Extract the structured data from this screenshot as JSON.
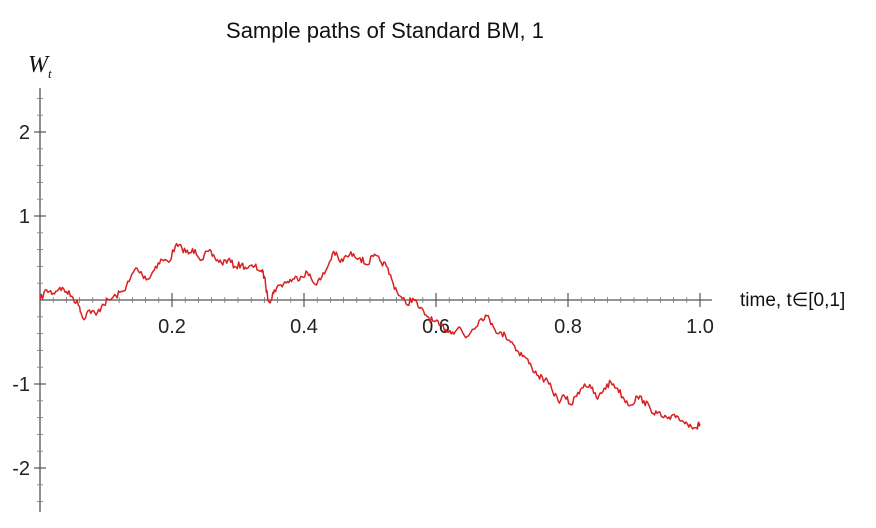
{
  "chart_data": {
    "type": "line",
    "title": "Sample paths of Standard BM, 1",
    "xlabel": "time, t∈[0,1]",
    "ylabel": {
      "main": "W",
      "sub": "t"
    },
    "xlim": [
      0,
      1.0
    ],
    "ylim": [
      -2.5,
      2.5
    ],
    "xticks": [
      {
        "value": 0.2,
        "label": "0.2"
      },
      {
        "value": 0.4,
        "label": "0.4"
      },
      {
        "value": 0.6,
        "label": "0.6"
      },
      {
        "value": 0.8,
        "label": "0.8"
      },
      {
        "value": 1.0,
        "label": "1.0"
      }
    ],
    "yticks": [
      {
        "value": 2,
        "label": "2"
      },
      {
        "value": 1,
        "label": "1"
      },
      {
        "value": -1,
        "label": "-1"
      },
      {
        "value": -2,
        "label": "-2"
      }
    ],
    "grid": false,
    "legend": "none",
    "series": [
      {
        "color": "#d92020",
        "x": [
          0.0,
          0.01,
          0.02,
          0.03,
          0.04,
          0.05,
          0.06,
          0.065,
          0.075,
          0.085,
          0.095,
          0.105,
          0.115,
          0.125,
          0.135,
          0.145,
          0.155,
          0.165,
          0.175,
          0.185,
          0.195,
          0.205,
          0.215,
          0.225,
          0.235,
          0.245,
          0.255,
          0.265,
          0.275,
          0.285,
          0.295,
          0.305,
          0.315,
          0.325,
          0.335,
          0.34,
          0.345,
          0.35,
          0.355,
          0.365,
          0.375,
          0.385,
          0.395,
          0.405,
          0.415,
          0.425,
          0.435,
          0.445,
          0.455,
          0.465,
          0.475,
          0.485,
          0.495,
          0.505,
          0.515,
          0.525,
          0.535,
          0.545,
          0.555,
          0.565,
          0.575,
          0.585,
          0.595,
          0.605,
          0.615,
          0.625,
          0.635,
          0.645,
          0.655,
          0.665,
          0.675,
          0.685,
          0.695,
          0.705,
          0.715,
          0.725,
          0.735,
          0.745,
          0.755,
          0.765,
          0.775,
          0.785,
          0.795,
          0.805,
          0.815,
          0.825,
          0.835,
          0.845,
          0.855,
          0.865,
          0.875,
          0.885,
          0.895,
          0.905,
          0.915,
          0.925,
          0.935,
          0.945,
          0.955,
          0.965,
          0.975,
          0.985,
          0.995,
          1.0
        ],
        "y": [
          0.0,
          0.12,
          0.08,
          0.15,
          0.1,
          0.03,
          -0.08,
          -0.22,
          -0.12,
          -0.18,
          -0.05,
          0.0,
          0.05,
          0.1,
          0.22,
          0.38,
          0.3,
          0.25,
          0.4,
          0.48,
          0.45,
          0.64,
          0.62,
          0.55,
          0.6,
          0.48,
          0.58,
          0.5,
          0.44,
          0.48,
          0.4,
          0.42,
          0.38,
          0.4,
          0.35,
          0.28,
          0.02,
          0.0,
          0.12,
          0.18,
          0.22,
          0.25,
          0.28,
          0.33,
          0.2,
          0.24,
          0.38,
          0.58,
          0.45,
          0.52,
          0.55,
          0.5,
          0.42,
          0.52,
          0.47,
          0.4,
          0.2,
          0.05,
          -0.05,
          0.02,
          -0.1,
          -0.18,
          -0.25,
          -0.3,
          -0.35,
          -0.38,
          -0.32,
          -0.45,
          -0.35,
          -0.25,
          -0.18,
          -0.28,
          -0.4,
          -0.42,
          -0.5,
          -0.62,
          -0.68,
          -0.8,
          -0.9,
          -0.95,
          -1.05,
          -1.2,
          -1.15,
          -1.25,
          -1.1,
          -1.0,
          -1.05,
          -1.18,
          -1.05,
          -0.98,
          -1.05,
          -1.18,
          -1.25,
          -1.15,
          -1.2,
          -1.3,
          -1.35,
          -1.4,
          -1.42,
          -1.38,
          -1.45,
          -1.48,
          -1.52,
          -1.47
        ]
      }
    ]
  }
}
